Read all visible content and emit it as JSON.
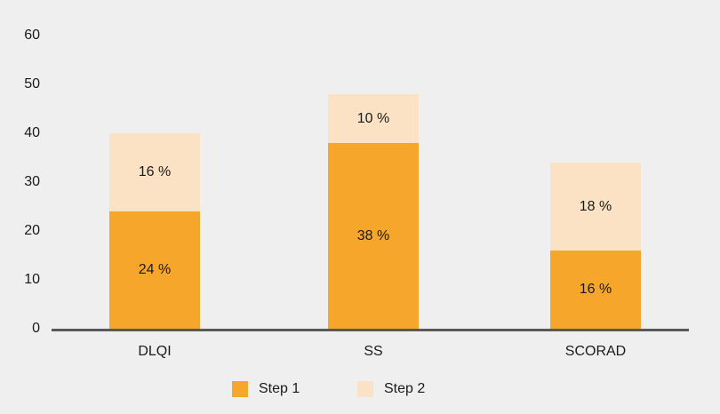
{
  "background_color": "#EFEFEF",
  "text_color": "#1a1a1a",
  "axis_line_color": "#595959",
  "chart_data": {
    "type": "bar",
    "stacked": true,
    "title": "",
    "xlabel": "",
    "ylabel": "",
    "grid": false,
    "legend_position": "bottom",
    "ylim": [
      0,
      60
    ],
    "yticks": [
      0,
      10,
      20,
      30,
      40,
      50,
      60
    ],
    "categories": [
      "DLQI",
      "SS",
      "SCORAD"
    ],
    "series": [
      {
        "name": "Step 1",
        "color": "#F7A62C",
        "values": [
          24,
          38,
          16
        ],
        "labels": [
          "24 %",
          "38 %",
          "16 %"
        ]
      },
      {
        "name": "Step 2",
        "color": "#FBE2C5",
        "values": [
          16,
          10,
          18
        ],
        "labels": [
          "16 %",
          "10 %",
          "18 %"
        ]
      }
    ]
  }
}
